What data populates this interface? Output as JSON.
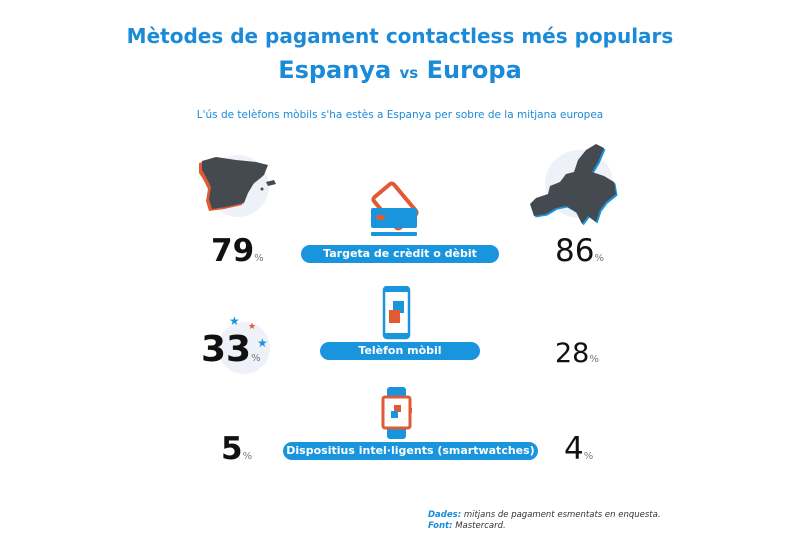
{
  "header": {
    "title": "Mètodes de pagament contactless més populars",
    "subtitle_left": "Espanya",
    "subtitle_vs": "vs",
    "subtitle_right": "Europa",
    "description": "L'ús de telèfons mòbils s'ha estès a Espanya per sobre de la mitjana europea"
  },
  "rows": [
    {
      "label": "Targeta de crèdit o dèbit",
      "spain": "79",
      "europe": "86",
      "icon": "credit-card-icon"
    },
    {
      "label": "Telèfon mòbil",
      "spain": "33",
      "europe": "28",
      "icon": "mobile-phone-icon"
    },
    {
      "label": "Dispositius intel·ligents (smartwatches)",
      "spain": "5",
      "europe": "4",
      "icon": "smartwatch-icon"
    }
  ],
  "percent_sign": "%",
  "footer": {
    "data_label": "Dades:",
    "data_text": "mitjans de pagament esmentats en enquesta.",
    "source_label": "Font:",
    "source_text": "Mastercard."
  },
  "colors": {
    "blue": "#1995dd",
    "orange": "#e05a33",
    "dark": "#454a50"
  }
}
